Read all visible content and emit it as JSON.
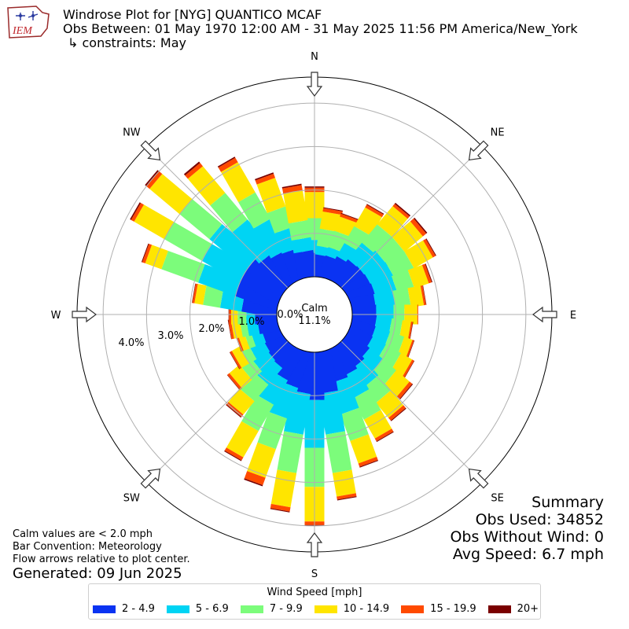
{
  "header": {
    "logo_text": "IEM",
    "title": "Windrose Plot for [NYG] QUANTICO MCAF",
    "period": "Obs Between: 01 May 1970 12:00 AM - 31 May 2025 11:56 PM America/New_York",
    "constraints": "↳ constraints: May"
  },
  "center": {
    "label": "Calm",
    "value": "11.1%"
  },
  "notes": {
    "line1": "Calm values are < 2.0 mph",
    "line2": "Bar Convention: Meteorology",
    "line3": "Flow arrows relative to plot center.",
    "generated": "Generated: 09 Jun 2025"
  },
  "summary": {
    "title": "Summary",
    "obs_used": "Obs Used: 34852",
    "obs_without_wind": "Obs Without Wind: 0",
    "avg_speed": "Avg Speed: 6.7 mph"
  },
  "legend": {
    "title": "Wind Speed [mph]",
    "items": [
      {
        "label": "2 - 4.9",
        "color": "#0a33f2"
      },
      {
        "label": "5 - 6.9",
        "color": "#00d4f4"
      },
      {
        "label": "7 - 9.9",
        "color": "#7cfc7b"
      },
      {
        "label": "10 - 14.9",
        "color": "#ffe500"
      },
      {
        "label": "15 - 19.9",
        "color": "#ff4a00"
      },
      {
        "label": "20+",
        "color": "#7a0000"
      }
    ]
  },
  "chart_data": {
    "type": "windrose",
    "direction_labels": [
      "N",
      "NE",
      "E",
      "SE",
      "S",
      "SW",
      "W",
      "NW"
    ],
    "radial_tick_labels": [
      "0.0%",
      "1.0%",
      "2.0%",
      "3.0%",
      "4.0%"
    ],
    "radial_ticks": [
      0,
      1,
      2,
      3,
      4
    ],
    "radial_max": 4.6,
    "calm_percent": 11.1,
    "units": "percent of observations",
    "speed_bins": [
      "2 - 4.9",
      "5 - 6.9",
      "7 - 9.9",
      "10 - 14.9",
      "15 - 19.9",
      "20+"
    ],
    "directions_deg": [
      0,
      10,
      20,
      30,
      40,
      50,
      60,
      70,
      80,
      90,
      100,
      110,
      120,
      130,
      140,
      150,
      160,
      170,
      180,
      190,
      200,
      210,
      220,
      230,
      240,
      250,
      260,
      270,
      280,
      290,
      300,
      310,
      320,
      330,
      340,
      350
    ],
    "sectors": [
      [
        0.55,
        0.3,
        0.5,
        0.6,
        0.1,
        0.03
      ],
      [
        0.5,
        0.2,
        0.4,
        0.4,
        0.08,
        0.02
      ],
      [
        0.5,
        0.2,
        0.4,
        0.35,
        0.07,
        0.02
      ],
      [
        0.55,
        0.35,
        0.45,
        0.5,
        0.07,
        0.02
      ],
      [
        0.6,
        0.5,
        0.55,
        0.55,
        0.07,
        0.03
      ],
      [
        0.6,
        0.55,
        0.5,
        0.55,
        0.1,
        0.03
      ],
      [
        0.6,
        0.55,
        0.5,
        0.5,
        0.07,
        0.02
      ],
      [
        0.6,
        0.5,
        0.4,
        0.35,
        0.07,
        0.02
      ],
      [
        0.55,
        0.45,
        0.35,
        0.3,
        0.05,
        0.01
      ],
      [
        0.55,
        0.4,
        0.25,
        0.3,
        0.02,
        0.0
      ],
      [
        0.55,
        0.35,
        0.25,
        0.2,
        0.04,
        0.01
      ],
      [
        0.55,
        0.35,
        0.35,
        0.2,
        0.04,
        0.01
      ],
      [
        0.55,
        0.35,
        0.4,
        0.3,
        0.05,
        0.01
      ],
      [
        0.6,
        0.4,
        0.4,
        0.4,
        0.08,
        0.02
      ],
      [
        0.65,
        0.5,
        0.45,
        0.45,
        0.08,
        0.02
      ],
      [
        0.7,
        0.55,
        0.55,
        0.5,
        0.07,
        0.02
      ],
      [
        0.75,
        0.75,
        0.65,
        0.55,
        0.08,
        0.02
      ],
      [
        0.95,
        0.95,
        0.9,
        0.55,
        0.07,
        0.02
      ],
      [
        1.1,
        1.1,
        0.9,
        0.8,
        0.08,
        0.02
      ],
      [
        0.95,
        0.95,
        0.9,
        0.8,
        0.1,
        0.02
      ],
      [
        0.85,
        0.75,
        0.75,
        0.7,
        0.18,
        0.03
      ],
      [
        0.75,
        0.65,
        0.7,
        0.7,
        0.08,
        0.02
      ],
      [
        0.55,
        0.5,
        0.5,
        0.4,
        0.07,
        0.02
      ],
      [
        0.5,
        0.4,
        0.3,
        0.3,
        0.06,
        0.01
      ],
      [
        0.45,
        0.35,
        0.2,
        0.2,
        0.05,
        0.01
      ],
      [
        0.4,
        0.25,
        0.15,
        0.15,
        0.05,
        0.01
      ],
      [
        0.45,
        0.25,
        0.15,
        0.2,
        0.06,
        0.01
      ],
      [
        0.5,
        0.2,
        0.2,
        0.15,
        0.05,
        0.01
      ],
      [
        0.8,
        0.5,
        0.4,
        0.2,
        0.05,
        0.01
      ],
      [
        1.0,
        0.9,
        0.9,
        0.4,
        0.07,
        0.02
      ],
      [
        1.0,
        1.0,
        1.0,
        0.8,
        0.08,
        0.03
      ],
      [
        1.0,
        1.1,
        0.9,
        0.9,
        0.1,
        0.04
      ],
      [
        0.85,
        0.95,
        0.8,
        0.8,
        0.1,
        0.04
      ],
      [
        0.75,
        0.8,
        0.7,
        0.8,
        0.12,
        0.03
      ],
      [
        0.7,
        0.5,
        0.5,
        0.7,
        0.1,
        0.03
      ],
      [
        0.6,
        0.3,
        0.4,
        0.7,
        0.12,
        0.03
      ]
    ]
  }
}
